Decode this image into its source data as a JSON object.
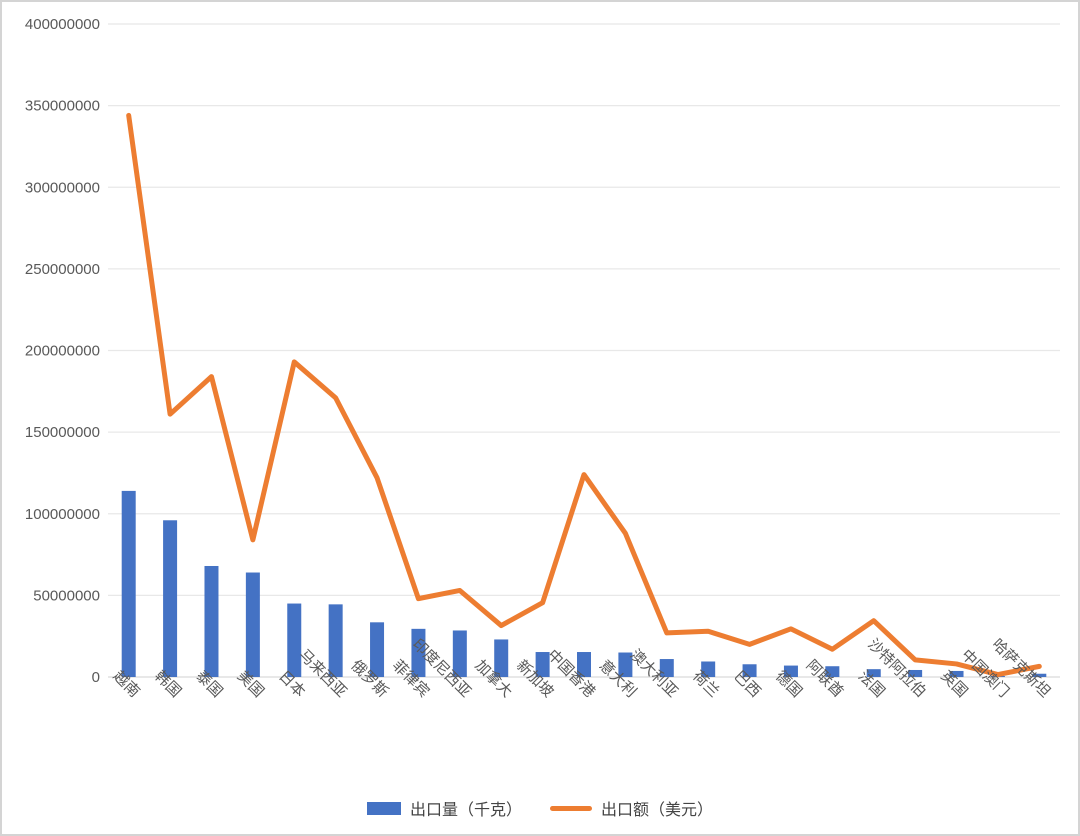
{
  "chart_data": {
    "type": "combo",
    "title": "",
    "categories": [
      "越南",
      "韩国",
      "泰国",
      "美国",
      "日本",
      "马来西亚",
      "俄罗斯",
      "菲律宾",
      "印度尼西亚",
      "加拿大",
      "新加坡",
      "中国香港",
      "意大利",
      "澳大利亚",
      "荷兰",
      "巴西",
      "德国",
      "阿联酋",
      "法国",
      "沙特阿拉伯",
      "英国",
      "中国澳门",
      "哈萨克斯坦"
    ],
    "series": [
      {
        "name": "出口量（千克）",
        "type": "bar",
        "color": "#4472C4",
        "values": [
          114000000,
          96000000,
          68000000,
          64000000,
          45000000,
          44500000,
          33500000,
          29500000,
          28500000,
          23000000,
          15300000,
          15300000,
          15000000,
          11000000,
          9500000,
          7800000,
          7000000,
          6600000,
          4800000,
          4300000,
          3700000,
          600000,
          2000000
        ]
      },
      {
        "name": "出口额（美元）",
        "type": "line",
        "color": "#ED7D31",
        "values": [
          344000000,
          161000000,
          184000000,
          84000000,
          193000000,
          171000000,
          122000000,
          48000000,
          53000000,
          31500000,
          45500000,
          124000000,
          88000000,
          27000000,
          28000000,
          20000000,
          29500000,
          17000000,
          34500000,
          10500000,
          8000000,
          1500000,
          6500000
        ]
      }
    ],
    "xlabel": "",
    "ylabel": "",
    "ylim": [
      0,
      400000000
    ],
    "y_tick_step": 50000000,
    "y_tick_labels": [
      "0",
      "50000000",
      "100000000",
      "150000000",
      "200000000",
      "250000000",
      "300000000",
      "350000000",
      "400000000"
    ],
    "grid": "horizontal",
    "gridline_color": "#e8e8e8",
    "axis_line_color": "#d9d9d9",
    "axis_text_color": "#595959",
    "legend_position": "bottom-center"
  }
}
